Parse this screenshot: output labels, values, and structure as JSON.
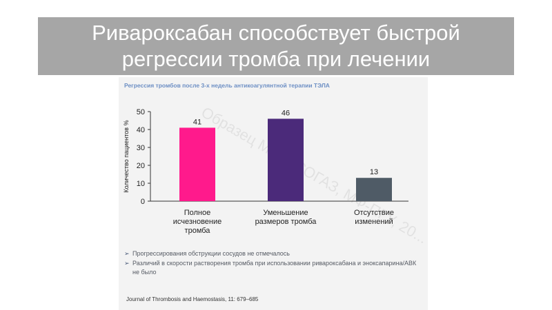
{
  "slide": {
    "title_line1": "Ривароксабан способствует быстрой",
    "title_line2": "регрессии тромба при лечении"
  },
  "figure": {
    "subtitle": "Регрессия тромбов после 3-х недель антикоагулянтной терапии ТЭЛА",
    "watermark": "Образец ММЦ-СОГАЗ, МФ-ПГУ, 20...",
    "notes": [
      "Прогрессирования обструкции сосудов не отмечалось",
      "Различий в скорости растворения тромба при использовании ривароксабана и эноксапарина/АВК не было"
    ],
    "source": "Journal of Thrombosis and Haemostasis, 11: 679–685"
  },
  "chart_data": {
    "type": "bar",
    "categories": [
      [
        "Полное",
        "исчезновение",
        "тромба"
      ],
      [
        "Уменьшение",
        "размеров тромба"
      ],
      [
        "Отсутствие",
        "изменений"
      ]
    ],
    "values": [
      41,
      46,
      13
    ],
    "data_labels": [
      "41",
      "46",
      "13"
    ],
    "colors": [
      "#ff1a8c",
      "#4b2a7a",
      "#4f5b66"
    ],
    "ylabel": "Количество пациентов %",
    "ylim": [
      0,
      50
    ],
    "yticks": [
      "0",
      "10",
      "20",
      "30",
      "40",
      "50"
    ],
    "grid": false
  }
}
